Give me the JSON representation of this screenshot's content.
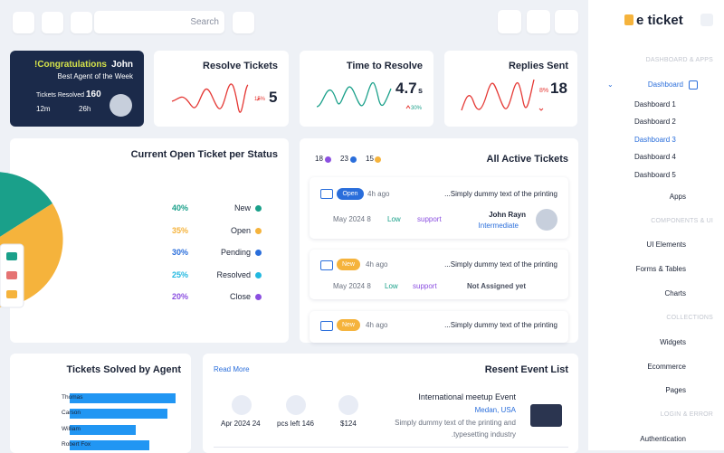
{
  "topbar": {
    "search_placeholder": "Search"
  },
  "sidebar": {
    "logo": "e ticket",
    "headings": [
      "DASHBOARD & APPS",
      "COMPONENTS & UI",
      "COLLECTIONS",
      "LOGIN & ERROR"
    ],
    "dashboard": "Dashboard",
    "dashboard_items": [
      "Dashboard 1",
      "Dashboard 2",
      "Dashboard 3",
      "Dashboard 4",
      "Dashboard 5"
    ],
    "items": [
      "Apps",
      "UI Elements",
      "Forms & Tables",
      "Charts",
      "Widgets",
      "Ecommerce",
      "Pages",
      "Authentication"
    ]
  },
  "congrats": {
    "greeting": "!Congratulations",
    "name": "John",
    "subtitle": "Best Agent of the Week",
    "resolved_label": "Tickets Resolved",
    "resolved_value": "160",
    "time1": "12m",
    "time2": "26h"
  },
  "stats": [
    {
      "title": "Resolve Tickets",
      "change": "15%",
      "value": "5"
    },
    {
      "title": "Time to Resolve",
      "value": "4.7",
      "unit": "s",
      "change": "30%"
    },
    {
      "title": "Replies Sent",
      "change": "8%",
      "value": "18"
    }
  ],
  "status": {
    "title": "Current Open Ticket per Status",
    "rows": [
      {
        "percent": "40%",
        "label": "New",
        "color": "#1aa08a"
      },
      {
        "percent": "35%",
        "label": "Open",
        "color": "#f5b33c"
      },
      {
        "percent": "30%",
        "label": "Pending",
        "color": "#2a6edb"
      },
      {
        "percent": "25%",
        "label": "Resolved",
        "color": "#22b8e0"
      },
      {
        "percent": "20%",
        "label": "Close",
        "color": "#8b4fe0"
      }
    ]
  },
  "active": {
    "title": "All Active Tickets",
    "counts": [
      {
        "value": "18",
        "color": "#8b4fe0"
      },
      {
        "value": "23",
        "color": "#2a6edb"
      },
      {
        "value": "15",
        "color": "#f5b33c"
      }
    ],
    "tickets": [
      {
        "badge": "Open",
        "time": "4h ago",
        "text": "...Simply dummy text of the printing",
        "date": "May 2024 8",
        "priority": "Low",
        "type": "support",
        "assignee": "John Rayn",
        "level": "Intermediate"
      },
      {
        "badge": "New",
        "time": "4h ago",
        "text": "...Simply dummy text of the printing",
        "date": "May 2024 8",
        "priority": "Low",
        "type": "support",
        "assignee": "Not Assigned yet"
      },
      {
        "badge": "New",
        "time": "4h ago",
        "text": "...Simply dummy text of the printing"
      }
    ]
  },
  "agents": {
    "title": "Tickets Solved by Agent",
    "categories": [
      "Thomas",
      "Carson",
      "William",
      "Robert Fox"
    ],
    "values": [
      90,
      83,
      56,
      68
    ],
    "xlim": [
      0,
      100
    ],
    "color": "#2196f3"
  },
  "events": {
    "read_more": "Read More",
    "title": "Resent Event List",
    "date": "Apr 2024 24",
    "pcs": "pcs left 146",
    "price": "$124",
    "event_title": "International meetup Event",
    "location": "Medan, USA",
    "desc1": "Simply dummy text of the printing and",
    "desc2": ".typesetting industry"
  }
}
